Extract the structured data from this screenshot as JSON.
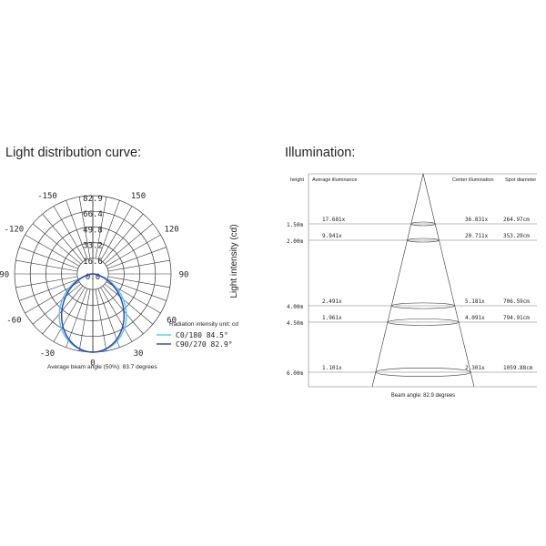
{
  "headings": {
    "left": "Light distribution curve:",
    "right": "Illumination:"
  },
  "chart_data": [
    {
      "type": "polar",
      "ylabel": "Light intensity (cd)",
      "radial_ticks": [
        "82.9",
        "66.4",
        "49.8",
        "33.2",
        "16.6",
        "0.0"
      ],
      "angle_labels": [
        "-150",
        "150",
        "-120",
        "120",
        "-90",
        "90",
        "-60",
        "60",
        "-30",
        "30",
        "0"
      ],
      "unit_note": "Radiation intensity unit: cd",
      "series": [
        {
          "name": "C0/180 84.5°",
          "color": "#55c8e8"
        },
        {
          "name": "C90/270 82.9°",
          "color": "#2a3fb5"
        }
      ],
      "average_beam_note": "Average beam angle (50%): 83.7 degrees"
    },
    {
      "type": "table",
      "headers": {
        "height": "height",
        "average": "Average illuminance",
        "center": "Center illumination",
        "spot": "Spot diameter"
      },
      "rows": [
        {
          "height": "1.50m",
          "average": "17.681x",
          "center": "36.831x",
          "spot": "264.97cm"
        },
        {
          "height": "2.00m",
          "average": "9.941x",
          "center": "20.711x",
          "spot": "353.29cm"
        },
        {
          "height": "4.00m",
          "average": "2.491x",
          "center": "5.181x",
          "spot": "706.59cm"
        },
        {
          "height": "4.50m",
          "average": "1.961x",
          "center": "4.091x",
          "spot": "794.91cm"
        },
        {
          "height": "6.00m",
          "average": "1.101x",
          "center": "2.301x",
          "spot": "1059.88cm"
        }
      ],
      "beam_note": "Beam angle: 82.9 degrees"
    }
  ]
}
